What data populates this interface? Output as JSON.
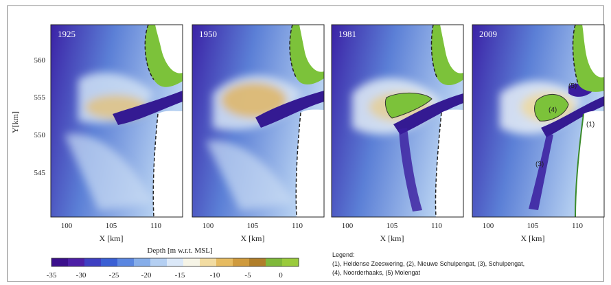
{
  "panels": [
    {
      "year": "1925",
      "labels": []
    },
    {
      "year": "1950",
      "labels": []
    },
    {
      "year": "1981",
      "labels": []
    },
    {
      "year": "2009",
      "labels": [
        {
          "text": "(4)"
        },
        {
          "text": "(5)"
        },
        {
          "text": "(1)"
        },
        {
          "text": "(3)"
        }
      ]
    }
  ],
  "axes": {
    "x_label": "X [km]",
    "x_ticks": [
      "100",
      "105",
      "110"
    ],
    "y_label": "Y[km]",
    "y_ticks": [
      "560",
      "555",
      "550",
      "545"
    ]
  },
  "colorbar": {
    "title": "Depth [m w.r.t. MSL]",
    "ticks": [
      "-35",
      "-30",
      "-25",
      "-20",
      "-15",
      "-10",
      "-5",
      "0"
    ],
    "colors": [
      "#3b0f8c",
      "#4d1fa6",
      "#3e3fc2",
      "#3a5fd4",
      "#5a86e0",
      "#86ade9",
      "#b4cff2",
      "#dbe8f8",
      "#f6f4e6",
      "#f2dca2",
      "#e6bb61",
      "#cf9a3d",
      "#b07e2a",
      "#7fb83a",
      "#9acb3c"
    ]
  },
  "legend": {
    "title": "Legend:",
    "line1": "(1), Heldense Zeeswering, (2), Nieuwe Schulpengat, (3), Schulpengat,",
    "line2": "(4), Noorderhaaks, (5) Molengat"
  },
  "colors": {
    "deep": "#3a1c9e",
    "mid": "#5f7fd8",
    "shallow": "#cfe0f4",
    "sand": "#e2b45c",
    "land": "#7cc23a",
    "white": "#ffffff"
  }
}
